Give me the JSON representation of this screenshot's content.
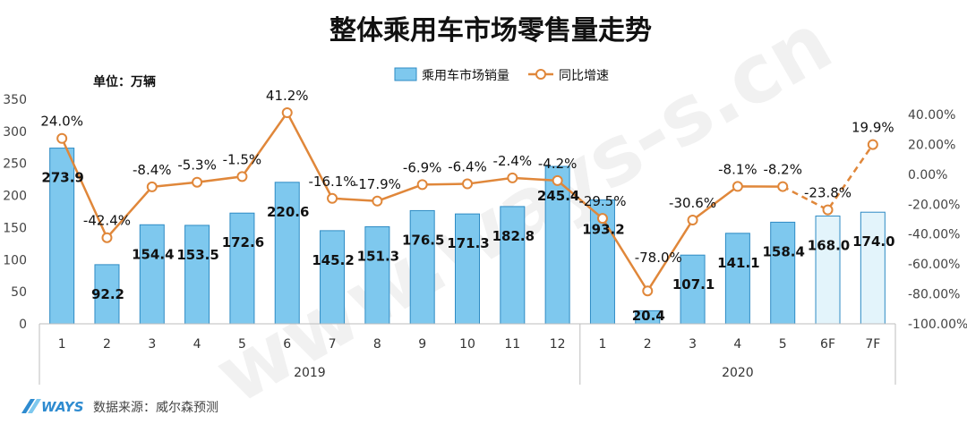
{
  "page": {
    "unit_label": "单位：万辆",
    "source_label": "数据来源：威尔森预测",
    "logo_text": "WAYS",
    "watermark": "www.ways-s.cn"
  },
  "colors": {
    "bar_fill": "#7ec8ee",
    "bar_stroke": "#2e8bc4",
    "forecast_fill": "#e3f4fb",
    "line": "#e0873a",
    "marker_fill": "#ffffff"
  },
  "chart_data": {
    "type": "bar",
    "title": "整体乘用车市场零售量走势",
    "categories": [
      "1",
      "2",
      "3",
      "4",
      "5",
      "6",
      "7",
      "8",
      "9",
      "10",
      "11",
      "12",
      "1",
      "2",
      "3",
      "4",
      "5",
      "6F",
      "7F"
    ],
    "groups": [
      {
        "label": "2019",
        "count": 12
      },
      {
        "label": "2020",
        "count": 7
      }
    ],
    "series": [
      {
        "name": "乘用车市场销量",
        "type": "bar",
        "axis": "left",
        "values": [
          273.9,
          92.2,
          154.4,
          153.5,
          172.6,
          220.6,
          145.2,
          151.3,
          176.5,
          171.3,
          182.8,
          245.4,
          193.2,
          20.4,
          107.1,
          141.1,
          158.4,
          168.0,
          174.0
        ],
        "labels": [
          "273.9",
          "92.2",
          "154.4",
          "153.5",
          "172.6",
          "220.6",
          "145.2",
          "151.3",
          "176.5",
          "171.3",
          "182.8",
          "245.4",
          "193.2",
          "20.4",
          "107.1",
          "141.1",
          "158.4",
          "168.0",
          "174.0"
        ],
        "forecast_from": 17
      },
      {
        "name": "同比增速",
        "type": "line",
        "axis": "right",
        "values": [
          24.0,
          -42.4,
          -8.4,
          -5.3,
          -1.5,
          41.2,
          -16.1,
          -17.9,
          -6.9,
          -6.4,
          -2.4,
          -4.2,
          -29.5,
          -78.0,
          -30.6,
          -8.1,
          -8.2,
          -23.8,
          19.9
        ],
        "labels": [
          "24.0%",
          "-42.4%",
          "-8.4%",
          "-5.3%",
          "-1.5%",
          "41.2%",
          "-16.1%",
          "-17.9%",
          "-6.9%",
          "-6.4%",
          "-2.4%",
          "-4.2%",
          "-29.5%",
          "-78.0%",
          "-30.6%",
          "-8.1%",
          "-8.2%",
          "-23.8%",
          "19.9%"
        ],
        "dashed_from": 16
      }
    ],
    "y_left": {
      "min": 0,
      "max": 350,
      "step": 50,
      "ticks": [
        "0",
        "50",
        "100",
        "150",
        "200",
        "250",
        "300",
        "350"
      ]
    },
    "y_right": {
      "min": -100,
      "max": 40,
      "step": 20,
      "ticks": [
        "-100.00%",
        "-80.00%",
        "-60.00%",
        "-40.00%",
        "-20.00%",
        "0.00%",
        "20.00%",
        "40.00%"
      ]
    },
    "legend_position": "top-center",
    "grid": false
  }
}
